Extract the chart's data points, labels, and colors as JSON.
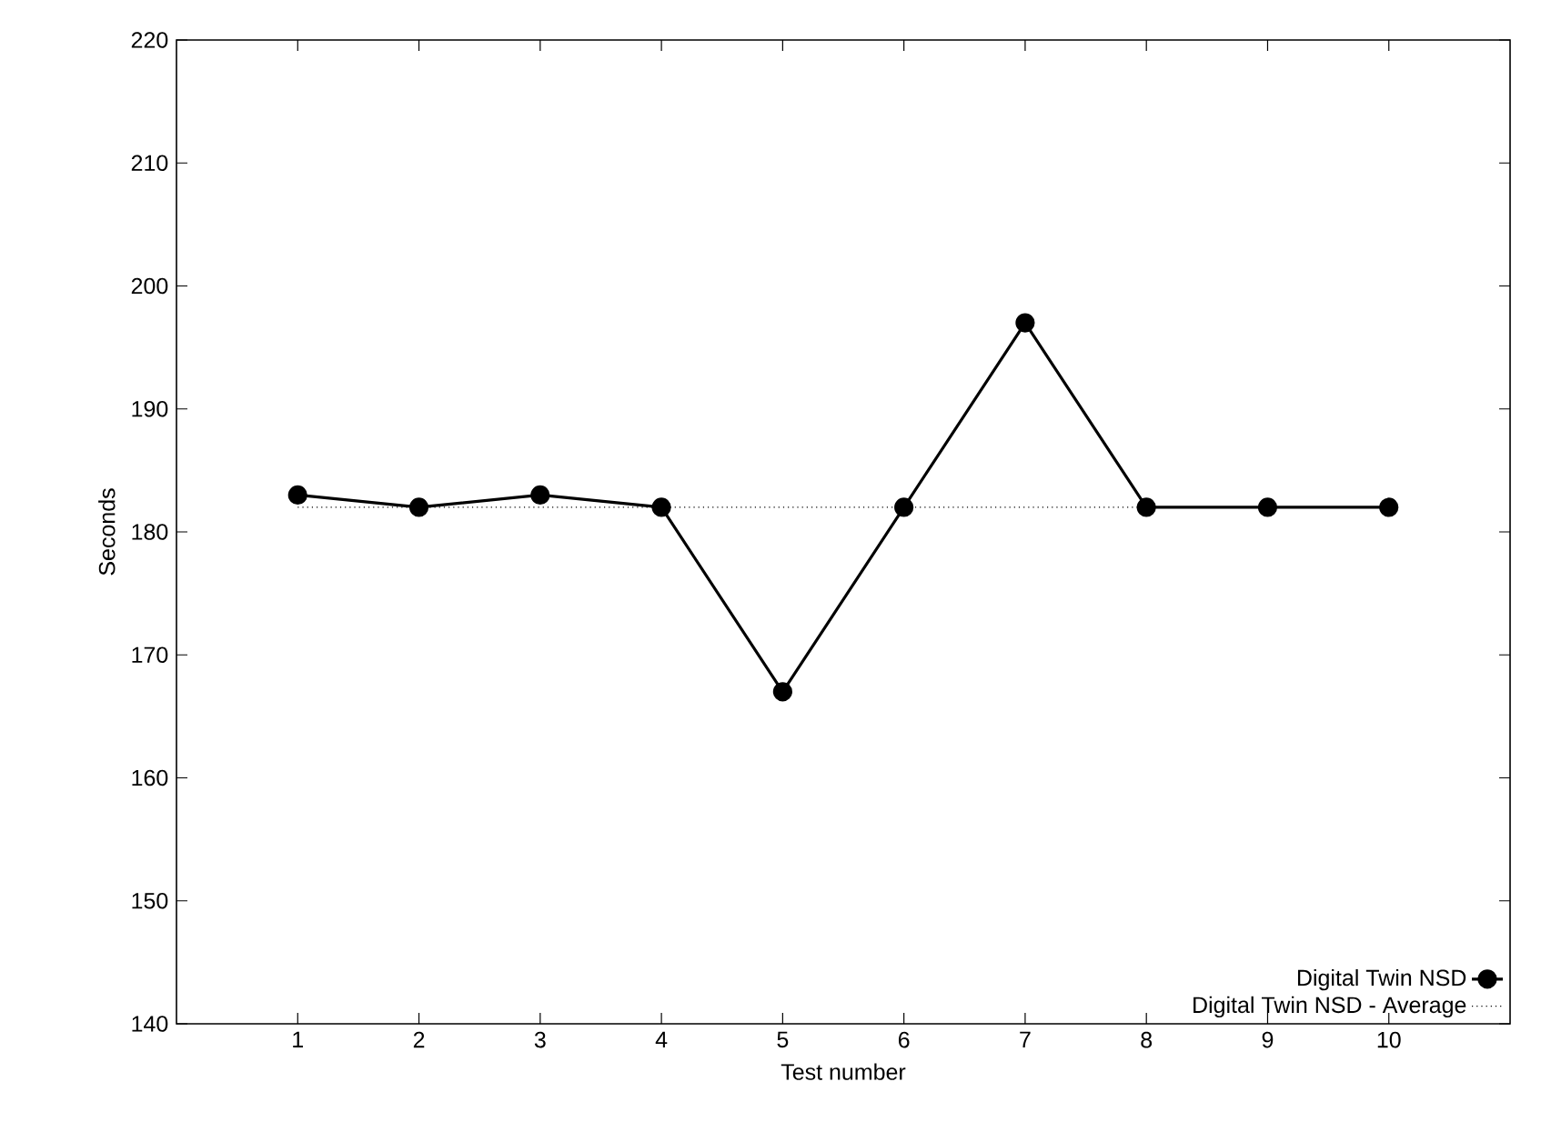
{
  "chart_data": {
    "type": "line",
    "xlabel": "Test number",
    "ylabel": "Seconds",
    "xlim": [
      0,
      11
    ],
    "xticks": [
      1,
      2,
      3,
      4,
      5,
      6,
      7,
      8,
      9,
      10
    ],
    "ylim": [
      140,
      220
    ],
    "yticks": [
      140,
      150,
      160,
      170,
      180,
      190,
      200,
      210,
      220
    ],
    "legend": "bottom right",
    "grid": false,
    "series": [
      {
        "name": "Digital Twin NSD",
        "color": "#000000",
        "x": [
          1,
          2,
          3,
          4,
          5,
          6,
          7,
          8,
          9,
          10
        ],
        "values": [
          183,
          182,
          183,
          182,
          167,
          182,
          197,
          182,
          182,
          182
        ],
        "marker": "circle",
        "line_style": "solid"
      },
      {
        "name": "Digital Twin NSD - Average",
        "color": "#000000",
        "x": [
          1,
          10
        ],
        "values": [
          182,
          182
        ],
        "marker": "none",
        "line_style": "dotted"
      }
    ]
  }
}
